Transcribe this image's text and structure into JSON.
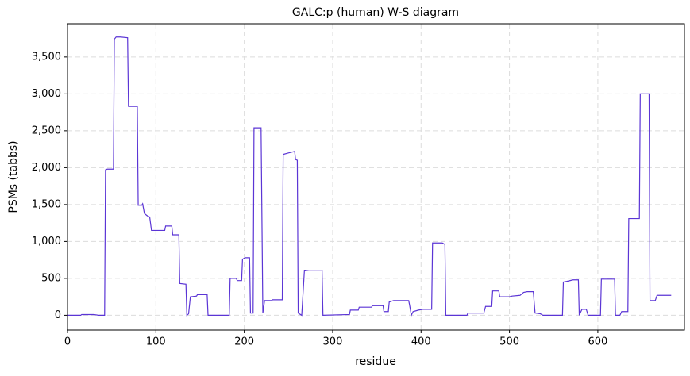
{
  "chart_data": {
    "type": "line",
    "title": "GALC:p (human) W-S diagram",
    "x_label": "residue",
    "y_label": "PSMs (tabbs)",
    "color": "#5b35d5",
    "grid": true,
    "x": [
      0,
      15,
      16,
      30,
      35,
      42,
      43,
      45,
      52,
      53,
      55,
      60,
      68,
      69,
      79,
      80,
      84,
      85,
      87,
      90,
      93,
      95,
      104,
      110,
      111,
      118,
      119,
      126,
      127,
      134,
      135,
      137,
      139,
      146,
      147,
      158,
      159,
      183,
      184,
      191,
      192,
      197,
      198,
      201,
      206,
      207,
      210,
      211,
      219,
      221,
      223,
      231,
      232,
      243,
      244,
      250,
      257,
      258,
      260,
      261,
      265,
      268,
      273,
      288,
      289,
      319,
      320,
      329,
      330,
      344,
      345,
      357,
      358,
      363,
      364,
      369,
      386,
      387,
      389,
      391,
      397,
      402,
      412,
      413,
      424,
      427,
      428,
      452,
      453,
      471,
      473,
      480,
      481,
      488,
      489,
      500,
      503,
      512,
      516,
      520,
      527,
      529,
      535,
      538,
      560,
      561,
      565,
      572,
      578,
      579,
      582,
      587,
      589,
      603,
      604,
      619,
      620,
      625,
      627,
      634,
      635,
      647,
      648,
      658,
      659,
      665,
      667,
      683
    ],
    "values": [
      0,
      0,
      10,
      10,
      0,
      0,
      1970,
      1980,
      1980,
      3740,
      3770,
      3770,
      3760,
      2830,
      2830,
      1490,
      1490,
      1510,
      1380,
      1350,
      1330,
      1150,
      1150,
      1150,
      1210,
      1210,
      1090,
      1090,
      430,
      420,
      0,
      20,
      250,
      260,
      280,
      280,
      0,
      0,
      500,
      500,
      470,
      470,
      760,
      780,
      780,
      30,
      30,
      2540,
      2540,
      30,
      200,
      200,
      210,
      210,
      2180,
      2200,
      2220,
      2110,
      2100,
      30,
      0,
      600,
      610,
      610,
      0,
      10,
      70,
      70,
      110,
      110,
      130,
      130,
      50,
      50,
      180,
      200,
      200,
      140,
      0,
      50,
      70,
      80,
      80,
      980,
      980,
      960,
      0,
      0,
      30,
      30,
      120,
      120,
      330,
      330,
      250,
      250,
      260,
      270,
      310,
      320,
      320,
      30,
      20,
      0,
      0,
      450,
      460,
      480,
      480,
      0,
      80,
      80,
      0,
      0,
      490,
      490,
      0,
      0,
      50,
      50,
      1310,
      1310,
      3000,
      3000,
      200,
      200,
      270,
      270
    ],
    "xlim": [
      0,
      698
    ],
    "xticks": [
      0,
      100,
      200,
      300,
      400,
      500,
      600
    ],
    "ylim": [
      -200,
      3950
    ],
    "yticks": [
      0,
      500,
      {
        "value": 1000,
        "label": "1,000"
      },
      {
        "value": 1500,
        "label": "1,500"
      },
      {
        "value": 2000,
        "label": "2,000"
      },
      {
        "value": 2500,
        "label": "2,500"
      },
      {
        "value": 3000,
        "label": "3,000"
      },
      {
        "value": 3500,
        "label": "3,500"
      }
    ]
  }
}
